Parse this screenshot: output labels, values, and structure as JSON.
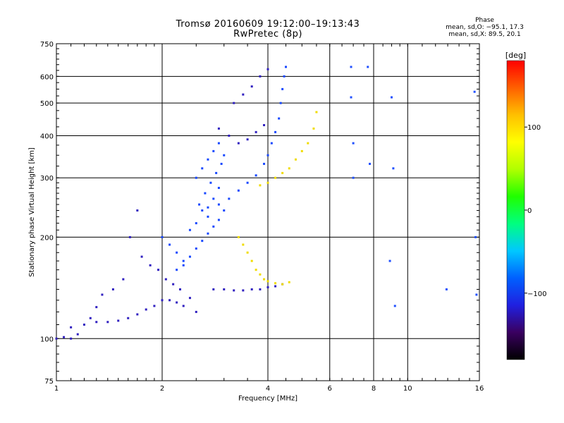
{
  "chart_data": {
    "type": "scatter",
    "title": "Tromsø 20160609 19:12:00–19:13:43",
    "subtitle": "RwPretec (8p)",
    "xlabel": "Frequency [MHz]",
    "ylabel": "Stationary phase Virtual Height [km]",
    "x_scale": "log",
    "y_scale": "log",
    "xlim": [
      1,
      16
    ],
    "ylim": [
      75,
      750
    ],
    "xticks": [
      1,
      2,
      4,
      6,
      8,
      10,
      16
    ],
    "xtick_labels": [
      "1",
      "2",
      "4",
      "6",
      "8",
      "10",
      "16"
    ],
    "yticks": [
      75,
      100,
      200,
      300,
      400,
      500,
      600,
      750
    ],
    "ytick_labels": [
      "75",
      "100",
      "200",
      "300",
      "400",
      "500",
      "600",
      "750"
    ],
    "grid": true,
    "phase_legend": {
      "title": "Phase",
      "line1": "mean, sd,O: −95.1, 17.3",
      "line2": "mean, sd,X:  89.5, 20.1"
    },
    "colorbar": {
      "label": "[deg]",
      "range": [
        -180,
        180
      ],
      "ticks": [
        100,
        0,
        -100
      ],
      "tick_labels": [
        "100",
        "0",
        "−100"
      ],
      "colors": [
        "#000000",
        "#3a0060",
        "#2020e0",
        "#0060ff",
        "#00c8ff",
        "#00ff80",
        "#20ff00",
        "#b0ff00",
        "#ffff00",
        "#ffc000",
        "#ff6000",
        "#ff0000"
      ]
    },
    "series": [
      {
        "group": "E-layer trace and spread",
        "color": "#3020c0",
        "x": [
          1.0,
          1.05,
          1.1,
          1.2,
          1.3,
          1.4,
          1.5,
          1.6,
          1.7,
          1.8,
          1.9,
          2.0,
          2.1,
          2.2,
          2.3,
          2.5,
          1.1,
          1.15,
          1.25,
          1.3,
          1.35,
          1.45,
          1.55,
          1.62,
          1.7,
          1.75,
          1.85,
          1.95,
          2.05,
          2.15,
          2.25,
          2.4
        ],
        "y": [
          100,
          101,
          108,
          110,
          112,
          112,
          113,
          115,
          118,
          122,
          125,
          130,
          130,
          128,
          125,
          120,
          100,
          103,
          115,
          124,
          135,
          140,
          150,
          200,
          240,
          175,
          165,
          160,
          150,
          145,
          140,
          132
        ]
      },
      {
        "group": "F-layer spread",
        "color": "#1848ff",
        "x": [
          2.0,
          2.1,
          2.2,
          2.3,
          2.4,
          2.5,
          2.6,
          2.7,
          2.8,
          2.9,
          2.2,
          2.3,
          2.4,
          2.5,
          2.6,
          2.7,
          2.8,
          2.9,
          3.0,
          2.5,
          2.6,
          2.7,
          2.8,
          2.9,
          2.55,
          2.65,
          2.75,
          2.85,
          2.95,
          3.0
        ],
        "y": [
          200,
          190,
          180,
          170,
          210,
          220,
          240,
          230,
          260,
          280,
          160,
          165,
          175,
          185,
          195,
          205,
          215,
          225,
          240,
          300,
          320,
          340,
          360,
          380,
          250,
          270,
          290,
          310,
          330,
          350
        ]
      },
      {
        "group": "F2 O-mode trace",
        "color": "#1848ff",
        "x": [
          2.7,
          2.9,
          3.1,
          3.3,
          3.5,
          3.7,
          3.9,
          4.0,
          4.1,
          4.2,
          4.3,
          4.35,
          4.4,
          4.45,
          4.5
        ],
        "y": [
          245,
          250,
          260,
          275,
          290,
          305,
          330,
          350,
          380,
          410,
          450,
          500,
          550,
          600,
          640
        ]
      },
      {
        "group": "F1 / oblique trace",
        "color": "#3020c0",
        "x": [
          2.8,
          3.0,
          3.2,
          3.4,
          3.6,
          3.8,
          4.0,
          4.2,
          4.4,
          2.9,
          3.1,
          3.3,
          3.5,
          3.7,
          3.9,
          3.2,
          3.4,
          3.6,
          3.8,
          4.0
        ],
        "y": [
          140,
          140,
          139,
          139,
          140,
          140,
          142,
          143,
          145,
          420,
          400,
          380,
          390,
          410,
          430,
          500,
          530,
          560,
          600,
          630
        ]
      },
      {
        "group": "X-mode trace",
        "color": "#f0dc00",
        "x": [
          3.8,
          4.0,
          4.2,
          4.4,
          4.6,
          4.8,
          5.0,
          5.2,
          5.4,
          5.5,
          3.3,
          3.4,
          3.5,
          3.6,
          3.7,
          3.8,
          3.9,
          4.0,
          4.2,
          4.4,
          4.6
        ],
        "y": [
          285,
          290,
          300,
          310,
          320,
          340,
          360,
          380,
          420,
          470,
          200,
          190,
          180,
          170,
          160,
          155,
          150,
          148,
          146,
          145,
          147
        ]
      },
      {
        "group": "Sporadic high-frequency echoes",
        "color": "#2050ff",
        "x": [
          6.9,
          6.9,
          7.0,
          7.0,
          7.7,
          7.8,
          9.0,
          9.1,
          8.9,
          9.2,
          12.9,
          15.5,
          15.6,
          15.7
        ],
        "y": [
          640,
          520,
          380,
          300,
          640,
          330,
          520,
          320,
          170,
          125,
          140,
          540,
          200,
          135
        ]
      }
    ]
  }
}
